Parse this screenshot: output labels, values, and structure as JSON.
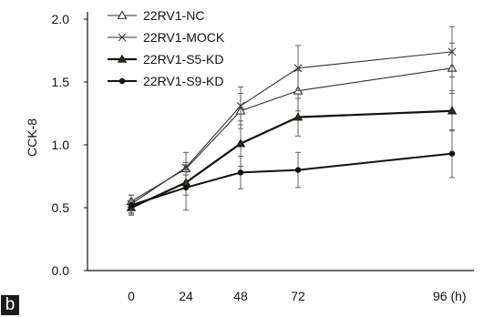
{
  "panel_label": "b",
  "chart_data": {
    "type": "line",
    "title": "",
    "xlabel": "",
    "ylabel": "CCK-8",
    "x": [
      0,
      24,
      48,
      72,
      96
    ],
    "x_tick_labels": [
      "0",
      "24",
      "48",
      "72",
      "96 (h)"
    ],
    "ylim": [
      0.0,
      2.0
    ],
    "y_ticks": [
      0.0,
      0.5,
      1.0,
      1.5,
      2.0
    ],
    "y_tick_labels": [
      "0.0",
      "0.5",
      "1.0",
      "1.5",
      "2.0"
    ],
    "grid": false,
    "legend_position": "top-left",
    "series": [
      {
        "name": "22RV1-NC",
        "marker": "open-triangle",
        "color": "#333333",
        "values": [
          0.55,
          0.81,
          1.27,
          1.43,
          1.61
        ],
        "errors": [
          0.05,
          0.05,
          0.14,
          0.16,
          0.2
        ]
      },
      {
        "name": "22RV1-MOCK",
        "marker": "x",
        "color": "#333333",
        "values": [
          0.53,
          0.82,
          1.31,
          1.61,
          1.74
        ],
        "errors": [
          0.07,
          0.12,
          0.15,
          0.18,
          0.2
        ]
      },
      {
        "name": "22RV1-S5-KD",
        "marker": "filled-triangle",
        "color": "#111111",
        "values": [
          0.5,
          0.7,
          1.01,
          1.22,
          1.27
        ],
        "errors": [
          0.05,
          0.1,
          0.18,
          0.15,
          0.16
        ]
      },
      {
        "name": "22RV1-S9-KD",
        "marker": "circle",
        "color": "#111111",
        "values": [
          0.52,
          0.66,
          0.78,
          0.8,
          0.93
        ],
        "errors": [
          0.08,
          0.18,
          0.13,
          0.14,
          0.19
        ]
      }
    ]
  }
}
